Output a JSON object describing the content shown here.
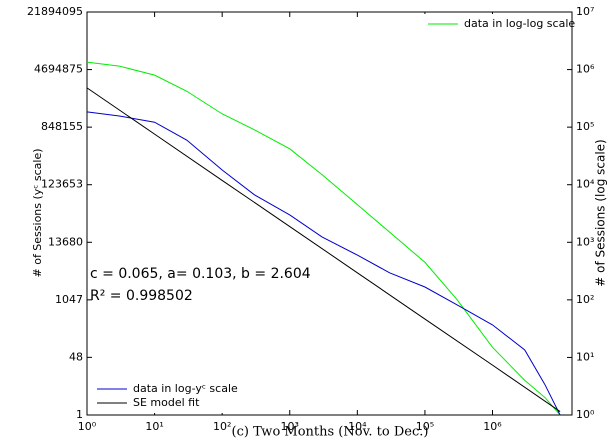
{
  "chart_data": {
    "type": "line",
    "caption": "(c) Two Months (Nov. to Dec.)",
    "ylabel": "# of Sessions (yᶜ scale)",
    "y2label": "# of Sessions (log scale)",
    "annotations": [
      "c = 0.065, a= 0.103, b = 2.604",
      "R² = 0.998502"
    ],
    "xscale": "log",
    "yscale": "power",
    "y_power": 0.065,
    "y2scale": "log",
    "xlim": [
      1,
      15000000
    ],
    "xticks": [
      {
        "value": 1,
        "label": "10⁰"
      },
      {
        "value": 10,
        "label": "10¹"
      },
      {
        "value": 100,
        "label": "10²"
      },
      {
        "value": 1000,
        "label": "10³"
      },
      {
        "value": 10000,
        "label": "10⁴"
      },
      {
        "value": 100000,
        "label": "10⁵"
      },
      {
        "value": 1000000,
        "label": "10⁶"
      }
    ],
    "ylim": [
      1,
      21894095
    ],
    "yticks": [
      1,
      48,
      1047,
      13680,
      123653,
      848155,
      4694875,
      21894095
    ],
    "y2lim": [
      1,
      10000000
    ],
    "y2ticks": [
      {
        "value": 1,
        "label": "10⁰"
      },
      {
        "value": 10,
        "label": "10¹"
      },
      {
        "value": 100,
        "label": "10²"
      },
      {
        "value": 1000,
        "label": "10³"
      },
      {
        "value": 10000,
        "label": "10⁴"
      },
      {
        "value": 100000,
        "label": "10⁵"
      },
      {
        "value": 1000000,
        "label": "10⁶"
      },
      {
        "value": 10000000,
        "label": "10⁷"
      }
    ],
    "series": [
      {
        "name": "data in log-log scale",
        "color": "#00ee00",
        "axis": "y2",
        "legend": "upper right",
        "x": [
          1,
          3,
          10,
          30,
          100,
          300,
          1000,
          3000,
          10000,
          30000,
          100000,
          300000,
          1000000,
          3000000,
          6000000,
          10000000
        ],
        "values": [
          1350000,
          1150000,
          800000,
          420000,
          170000,
          90000,
          42000,
          15000,
          4500,
          1500,
          450,
          100,
          15,
          4,
          2,
          1
        ]
      },
      {
        "name": "data in log-yᶜ scale",
        "color": "#0000cc",
        "legend": "lower left",
        "x": [
          1,
          3,
          10,
          30,
          100,
          300,
          1000,
          3000,
          10000,
          30000,
          100000,
          300000,
          1000000,
          3000000,
          6000000,
          10000000
        ],
        "values": [
          1360000,
          1200000,
          990000,
          560000,
          207000,
          86000,
          40500,
          17000,
          8000,
          3700,
          1930,
          815,
          295,
          74,
          8.5,
          1
        ]
      },
      {
        "name": "SE model fit",
        "color": "#000000",
        "legend": "lower left",
        "x": [
          1,
          10,
          100,
          1000,
          10000,
          100000,
          1000000,
          10000000
        ],
        "values": [
          2780000,
          680000,
          144000,
          25800,
          3700,
          400,
          30,
          1.3
        ]
      }
    ]
  }
}
